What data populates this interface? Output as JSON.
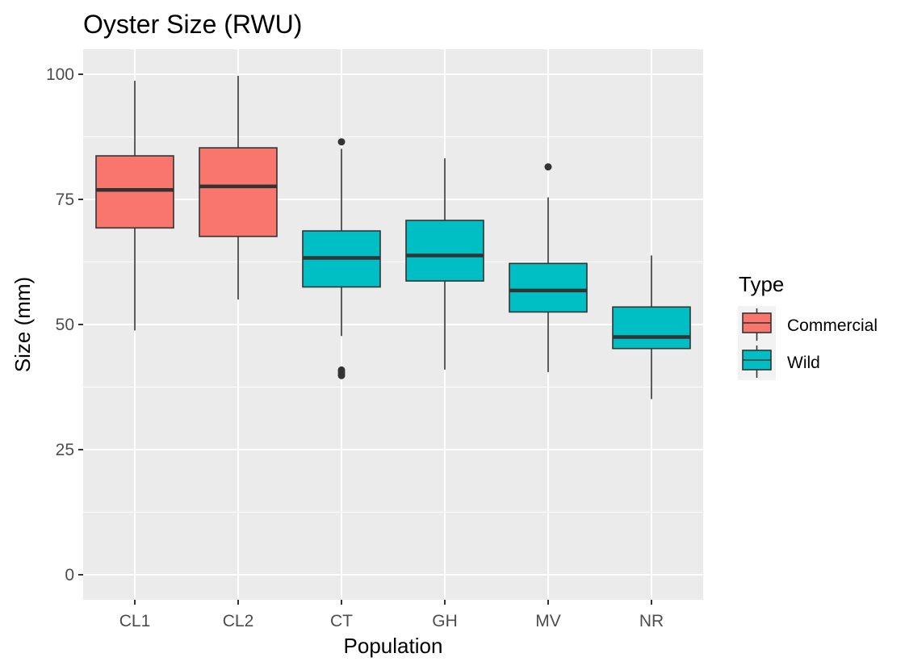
{
  "chart_data": {
    "type": "boxplot",
    "title": "Oyster Size (RWU)",
    "xlabel": "Population",
    "ylabel": "Size (mm)",
    "ylim": [
      -5,
      105
    ],
    "yticks": [
      0,
      25,
      50,
      75,
      100
    ],
    "grid": true,
    "legend": {
      "title": "Type",
      "placement": "right",
      "entries": [
        {
          "label": "Commercial",
          "color": "#F8766D"
        },
        {
          "label": "Wild",
          "color": "#00BFC4"
        }
      ]
    },
    "categories": [
      "CL1",
      "CL2",
      "CT",
      "GH",
      "MV",
      "NR"
    ],
    "boxes": [
      {
        "category": "CL1",
        "type": "Commercial",
        "min": 48.8,
        "q1": 69.3,
        "median": 76.9,
        "q3": 83.7,
        "max": 98.7,
        "outliers": []
      },
      {
        "category": "CL2",
        "type": "Commercial",
        "min": 55.0,
        "q1": 67.6,
        "median": 77.6,
        "q3": 85.3,
        "max": 99.7,
        "outliers": []
      },
      {
        "category": "CT",
        "type": "Wild",
        "min": 47.7,
        "q1": 57.5,
        "median": 63.3,
        "q3": 68.7,
        "max": 85.1,
        "outliers": [
          86.5,
          40.9,
          40.5,
          40.1,
          39.8
        ]
      },
      {
        "category": "GH",
        "type": "Wild",
        "min": 41.0,
        "q1": 58.7,
        "median": 63.8,
        "q3": 70.8,
        "max": 83.2,
        "outliers": []
      },
      {
        "category": "MV",
        "type": "Wild",
        "min": 40.5,
        "q1": 52.5,
        "median": 56.8,
        "q3": 62.2,
        "max": 75.4,
        "outliers": [
          81.5
        ]
      },
      {
        "category": "NR",
        "type": "Wild",
        "min": 35.1,
        "q1": 45.2,
        "median": 47.5,
        "q3": 53.5,
        "max": 63.8,
        "outliers": []
      }
    ]
  }
}
